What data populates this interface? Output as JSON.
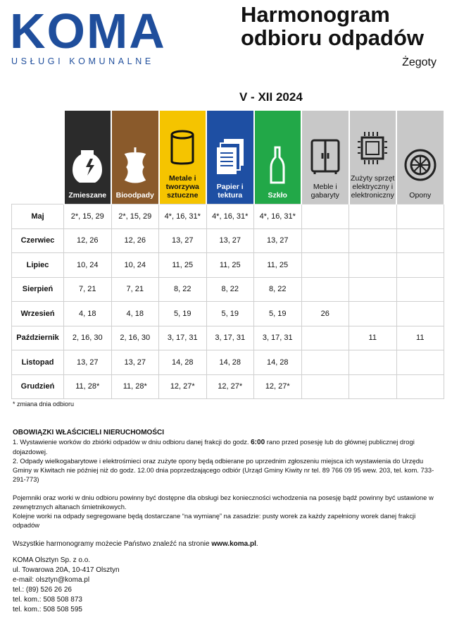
{
  "logo": {
    "word": "KOMA",
    "subtitle": "USŁUGI KOMUNALNE"
  },
  "header": {
    "title_line1": "Harmonogram",
    "title_line2": "odbioru odpadów",
    "location": "Żegoty",
    "period": "V - XII 2024"
  },
  "colors": {
    "brand": "#1f4e9c",
    "zmieszane": "#2b2b2b",
    "bio": "#8a5a2b",
    "metale": "#f5c400",
    "papier": "#1e4fa3",
    "szklo": "#22a848",
    "gray": "#c8c8c8"
  },
  "columns": [
    {
      "label": "Zmieszane",
      "icon": "broken-jar-icon",
      "color": "#2b2b2b",
      "text": "#fff"
    },
    {
      "label": "Bioodpady",
      "icon": "apple-core-icon",
      "color": "#8a5a2b",
      "text": "#fff"
    },
    {
      "label": "Metale i tworzywa sztuczne",
      "icon": "can-icon",
      "color": "#f5c400",
      "text": "#111"
    },
    {
      "label": "Papier i tektura",
      "icon": "paper-stack-icon",
      "color": "#1e4fa3",
      "text": "#fff"
    },
    {
      "label": "Szkło",
      "icon": "bottle-icon",
      "color": "#22a848",
      "text": "#fff"
    },
    {
      "label": "Meble i gabaryty",
      "icon": "wardrobe-icon",
      "color": "#c8c8c8",
      "text": "#111"
    },
    {
      "label": "Zużyty sprzęt elektryczny i elektroniczny",
      "icon": "chip-icon",
      "color": "#c8c8c8",
      "text": "#111"
    },
    {
      "label": "Opony",
      "icon": "tire-icon",
      "color": "#c8c8c8",
      "text": "#111"
    }
  ],
  "rows": [
    {
      "month": "Maj",
      "cells": [
        "2*, 15, 29",
        "2*, 15, 29",
        "4*, 16, 31*",
        "4*, 16, 31*",
        "4*, 16, 31*",
        "",
        "",
        ""
      ]
    },
    {
      "month": "Czerwiec",
      "cells": [
        "12, 26",
        "12, 26",
        "13, 27",
        "13, 27",
        "13, 27",
        "",
        "",
        ""
      ]
    },
    {
      "month": "Lipiec",
      "cells": [
        "10, 24",
        "10, 24",
        "11, 25",
        "11, 25",
        "11, 25",
        "",
        "",
        ""
      ]
    },
    {
      "month": "Sierpień",
      "cells": [
        "7, 21",
        "7, 21",
        "8, 22",
        "8, 22",
        "8, 22",
        "",
        "",
        ""
      ]
    },
    {
      "month": "Wrzesień",
      "cells": [
        "4, 18",
        "4, 18",
        "5, 19",
        "5, 19",
        "5, 19",
        "26",
        "",
        ""
      ]
    },
    {
      "month": "Październik",
      "cells": [
        "2, 16, 30",
        "2, 16, 30",
        "3, 17, 31",
        "3, 17, 31",
        "3, 17, 31",
        "",
        "11",
        "11"
      ]
    },
    {
      "month": "Listopad",
      "cells": [
        "13, 27",
        "13, 27",
        "14, 28",
        "14, 28",
        "14, 28",
        "",
        "",
        ""
      ]
    },
    {
      "month": "Grudzień",
      "cells": [
        "11, 28*",
        "11, 28*",
        "12, 27*",
        "12, 27*",
        "12, 27*",
        "",
        "",
        ""
      ]
    }
  ],
  "note": "* zmiana dnia odbioru",
  "duties": {
    "heading": "OBOWIĄZKI WŁAŚCICIELI NIERUCHOMOŚCI",
    "p1_a": "1. Wystawienie worków do zbiórki odpadów w dniu odbioru danej frakcji do godz. ",
    "p1_bold": "6:00",
    "p1_b": " rano przed posesję lub do głównej publicznej drogi dojazdowej.",
    "p2": "2. Odpady wielkogabarytowe i elektrośmieci oraz zużyte opony będą odbierane po uprzednim zgłoszeniu miejsca ich wystawienia do Urzędu Gminy w Kiwitach nie później niż do godz. 12.00 dnia poprzedzającego odbiór (Urząd Gminy Kiwity nr tel. 89 766 09 95 wew. 203, tel. kom. 733-291-773)",
    "p3": "Pojemniki oraz worki w dniu odbioru powinny być dostępne dla obsługi bez konieczności wchodzenia na posesję bądź powinny być ustawione w zewnętrznych altanach śmietnikowych.",
    "p4": "Kolejne worki na odpady segregowane będą dostarczane “na wymianę” na zasadzie: pusty worek za każdy zapełniony worek danej frakcji odpadów",
    "p5_a": "Wszystkie harmonogramy możecie Państwo znaleźć na stronie ",
    "p5_link": "www.koma.pl",
    "p5_b": "."
  },
  "contact": [
    "KOMA Olsztyn Sp. z o.o.",
    "ul. Towarowa 20A, 10-417 Olsztyn",
    "e-mail: olsztyn@koma.pl",
    "tel.: (89) 526 26 26",
    "tel. kom.: 508 508 873",
    "tel. kom.: 508 508 595"
  ]
}
